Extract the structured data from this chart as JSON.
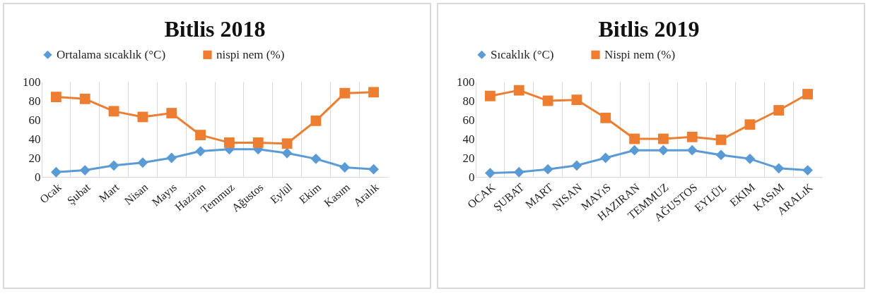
{
  "chart_data": [
    {
      "type": "line",
      "title": "Bitlis  2018",
      "categories": [
        "Ocak",
        "Şubat",
        "Mart",
        "Nisan",
        "Mayıs",
        "Haziran",
        "Temmuz",
        "Ağustos",
        "Eylül",
        "Ekim",
        "Kasım",
        "Aralık"
      ],
      "ylim": [
        0,
        100
      ],
      "yticks": [
        0,
        20,
        40,
        60,
        80,
        100
      ],
      "grid": "x",
      "legend": "top",
      "series": [
        {
          "name": "Ortalama sıcaklık (°C)",
          "color": "#5b9bd5",
          "marker": "diamond",
          "values": [
            5,
            7,
            12,
            15,
            20,
            27,
            29,
            29,
            25,
            19,
            10,
            8
          ]
        },
        {
          "name": "nispi nem (%)",
          "color": "#ed7d31",
          "marker": "square",
          "values": [
            84,
            82,
            69,
            63,
            67,
            44,
            36,
            36,
            35,
            59,
            88,
            89
          ]
        }
      ]
    },
    {
      "type": "line",
      "title": "Bitlis  2019",
      "categories": [
        "OCAK",
        "ŞUBAT",
        "MART",
        "NISAN",
        "MAYıS",
        "HAZIRAN",
        "TEMMUZ",
        "AĞUSTOS",
        "EYLÜL",
        "EKIM",
        "KASıM",
        "ARALıK"
      ],
      "ylim": [
        0,
        100
      ],
      "yticks": [
        0,
        20,
        40,
        60,
        80,
        100
      ],
      "grid": "x",
      "legend": "top",
      "series": [
        {
          "name": "Sıcaklık (°C)",
          "color": "#5b9bd5",
          "marker": "diamond",
          "values": [
            4,
            5,
            8,
            12,
            20,
            28,
            28,
            28,
            23,
            19,
            9,
            7
          ]
        },
        {
          "name": "Nispi nem (%)",
          "color": "#ed7d31",
          "marker": "square",
          "values": [
            85,
            91,
            80,
            81,
            62,
            40,
            40,
            42,
            39,
            55,
            70,
            87
          ]
        }
      ]
    }
  ]
}
